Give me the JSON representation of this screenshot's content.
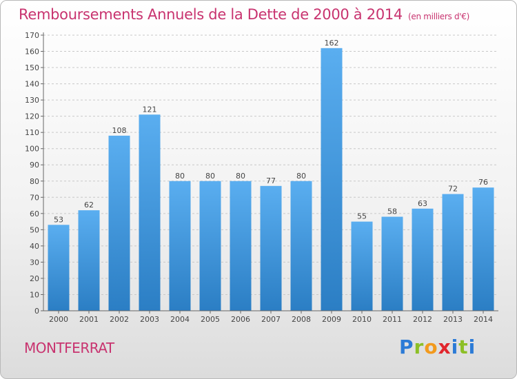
{
  "title": "Remboursements Annuels de la Dette de 2000 à 2014",
  "title_unit": "(en milliers d'€)",
  "city": "MONTFERRAT",
  "logo_text": "Proxiti",
  "colors": {
    "title": "#c8336f",
    "bar_light": "#5aaef0",
    "bar_dark": "#2b7ec4",
    "grid": "#c8c8c8"
  },
  "chart_data": {
    "type": "bar",
    "categories": [
      "2000",
      "2001",
      "2002",
      "2003",
      "2004",
      "2005",
      "2006",
      "2007",
      "2008",
      "2009",
      "2010",
      "2011",
      "2012",
      "2013",
      "2014"
    ],
    "values": [
      53,
      62,
      108,
      121,
      80,
      80,
      80,
      77,
      80,
      162,
      55,
      58,
      63,
      72,
      76
    ],
    "ylim": [
      0,
      170
    ],
    "yticks": [
      0,
      10,
      20,
      30,
      40,
      50,
      60,
      70,
      80,
      90,
      100,
      110,
      120,
      130,
      140,
      150,
      160,
      170
    ],
    "grid": true,
    "xlabel": "",
    "ylabel": ""
  }
}
